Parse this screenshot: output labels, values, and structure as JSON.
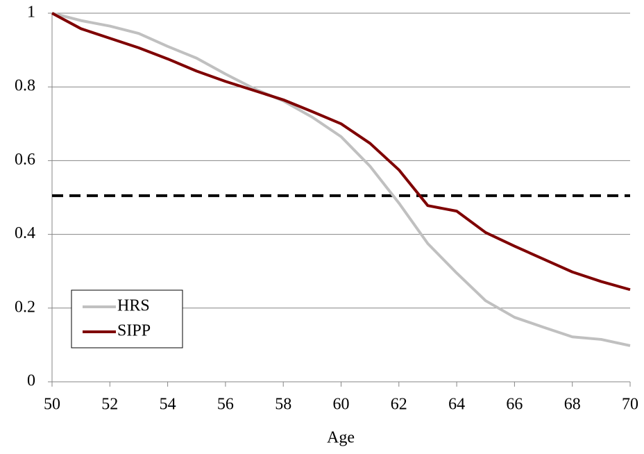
{
  "chart_data": {
    "type": "line",
    "x_label": "Age",
    "x": [
      50,
      51,
      52,
      53,
      54,
      55,
      56,
      57,
      58,
      59,
      60,
      61,
      62,
      63,
      64,
      65,
      66,
      67,
      68,
      69,
      70
    ],
    "xlim": [
      50,
      70
    ],
    "xticks": [
      50,
      52,
      54,
      56,
      58,
      60,
      62,
      64,
      66,
      68,
      70
    ],
    "ylim": [
      0,
      1
    ],
    "yticks": [
      0,
      0.2,
      0.4,
      0.6,
      0.8,
      1
    ],
    "grid": true,
    "legend": "lower left",
    "reference_line": {
      "value": 0.505,
      "color": "#000000",
      "style": "dashed"
    },
    "series": [
      {
        "name": "HRS",
        "color": "#c0c0c0",
        "values": [
          1.0,
          0.98,
          0.965,
          0.945,
          0.91,
          0.878,
          0.835,
          0.795,
          0.762,
          0.718,
          0.665,
          0.585,
          0.485,
          0.375,
          0.295,
          0.22,
          0.175,
          0.148,
          0.122,
          0.115,
          0.098
        ]
      },
      {
        "name": "SIPP",
        "color": "#7f0000",
        "values": [
          1.0,
          0.958,
          0.932,
          0.906,
          0.876,
          0.843,
          0.815,
          0.79,
          0.765,
          0.733,
          0.7,
          0.647,
          0.575,
          0.478,
          0.463,
          0.405,
          0.368,
          0.333,
          0.298,
          0.272,
          0.25
        ]
      }
    ]
  }
}
